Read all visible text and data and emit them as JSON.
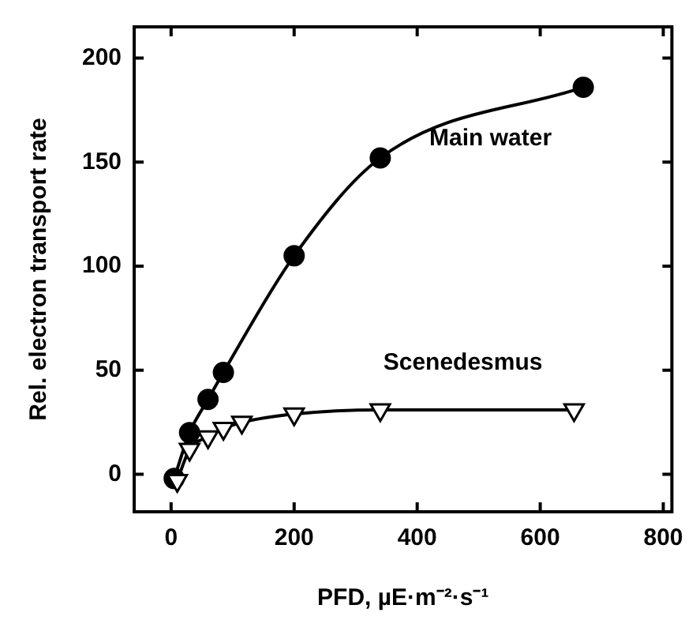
{
  "chart_data": {
    "type": "line",
    "xlabel": "PFD, µE·m⁻²·s⁻¹",
    "ylabel": "Rel. electron transport rate",
    "xlim": [
      -60,
      814
    ],
    "xticks": [
      0,
      200,
      400,
      600,
      800
    ],
    "ylim": [
      -18,
      215
    ],
    "yticks": [
      0,
      50,
      100,
      150,
      200
    ],
    "grid": false,
    "legend": false,
    "line_style": "solid",
    "series": [
      {
        "name": "Main water",
        "color": "#000000",
        "marker": "circle",
        "x": [
          5,
          30,
          60,
          85,
          200,
          340,
          670
        ],
        "values": [
          -2,
          20,
          36,
          49,
          105,
          152,
          186
        ]
      },
      {
        "name": "Scenedesmus",
        "color": "#000000",
        "marker": "triangle",
        "x": [
          10,
          30,
          60,
          85,
          115,
          200,
          340,
          655
        ],
        "values": [
          -3,
          12,
          18,
          22,
          25,
          29,
          31,
          31
        ]
      }
    ]
  }
}
